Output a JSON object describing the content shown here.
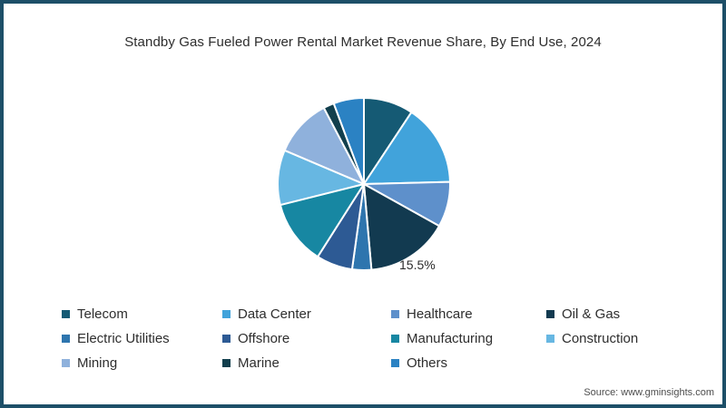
{
  "frame": {
    "border_color": "#1d4f68",
    "background": "#ffffff"
  },
  "header": {
    "title": "Standby Gas Fueled Power Rental Market Revenue Share, By End Use, 2024"
  },
  "footer": {
    "source": "Source: www.gminsights.com"
  },
  "chart_data": {
    "type": "pie",
    "title": "Standby Gas Fueled Power Rental Market Revenue Share, By End Use, 2024",
    "start_angle": "12-oclock",
    "direction": "clockwise",
    "legend_position": "bottom",
    "annotation": {
      "text": "15.5%",
      "slice": "Oil & Gas"
    },
    "series": [
      {
        "name": "Telecom",
        "value": 9.3,
        "color": "#155a74"
      },
      {
        "name": "Data Center",
        "value": 15.3,
        "color": "#41a3db"
      },
      {
        "name": "Healthcare",
        "value": 8.5,
        "color": "#5e90cb"
      },
      {
        "name": "Oil & Gas",
        "value": 15.5,
        "color": "#123a50"
      },
      {
        "name": "Electric Utilities",
        "value": 3.6,
        "color": "#2e75ae"
      },
      {
        "name": "Offshore",
        "value": 6.8,
        "color": "#2d5a94"
      },
      {
        "name": "Manufacturing",
        "value": 12.1,
        "color": "#1787a2"
      },
      {
        "name": "Construction",
        "value": 10.3,
        "color": "#67b7e2"
      },
      {
        "name": "Mining",
        "value": 10.9,
        "color": "#8fb1dc"
      },
      {
        "name": "Marine",
        "value": 2.0,
        "color": "#123f4d"
      },
      {
        "name": "Others",
        "value": 5.7,
        "color": "#2b82c3"
      }
    ]
  }
}
